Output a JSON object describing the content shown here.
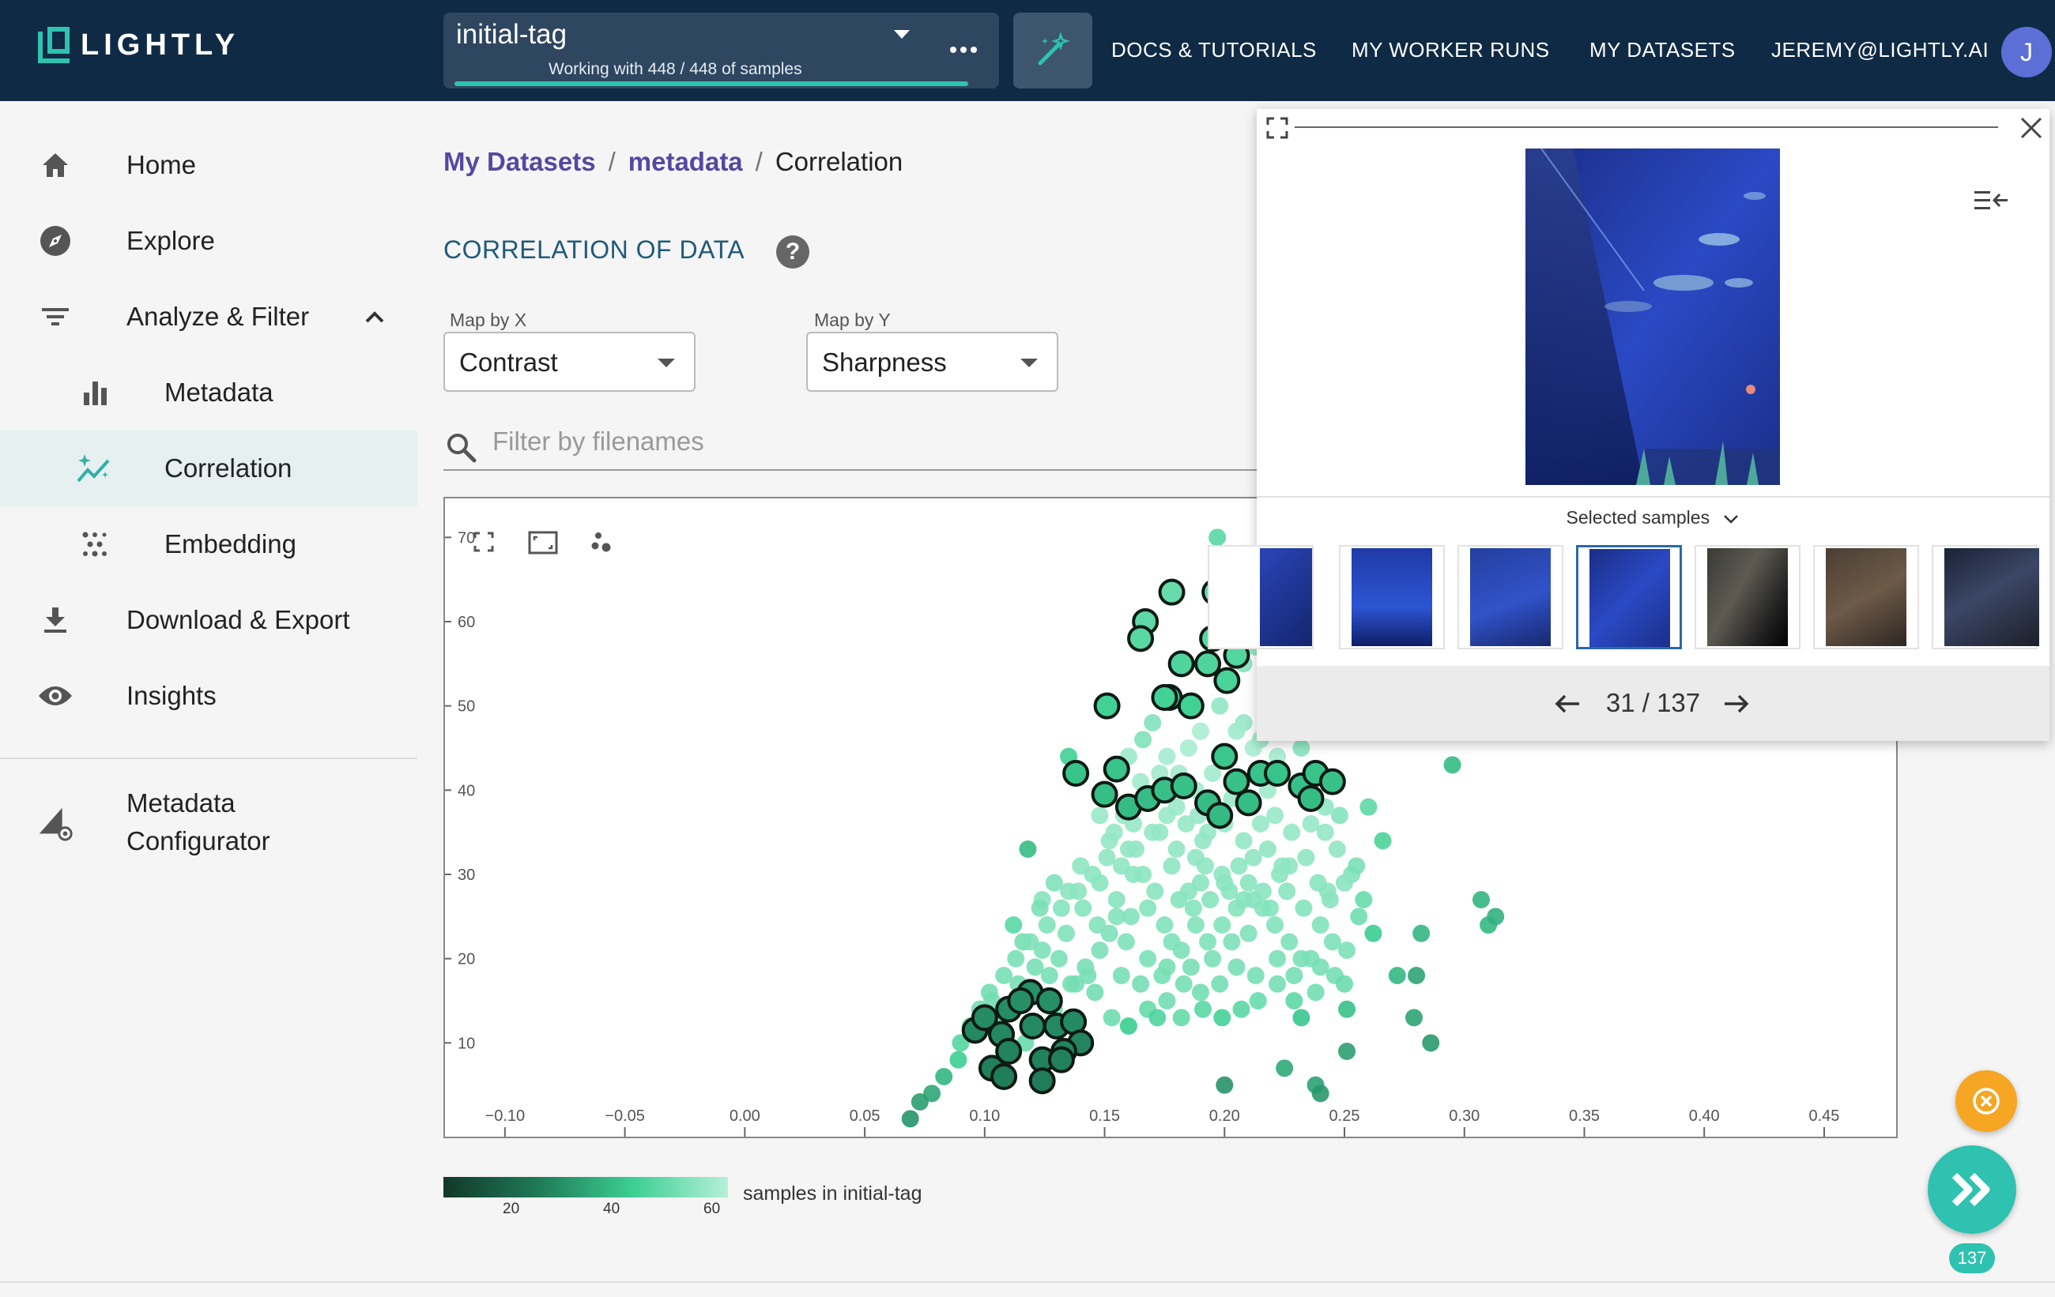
{
  "header": {
    "logo_text": "LIGHTLY",
    "tag": {
      "name": "initial-tag",
      "subtitle": "Working with 448 / 448 of samples",
      "progress": 1.0
    },
    "nav": [
      "DOCS & TUTORIALS",
      "MY WORKER RUNS",
      "MY DATASETS"
    ],
    "user_email": "JEREMY@LIGHTLY.AI",
    "avatar_initial": "J"
  },
  "sidebar": {
    "items": [
      {
        "label": "Home",
        "icon": "home-icon"
      },
      {
        "label": "Explore",
        "icon": "compass-icon"
      },
      {
        "label": "Analyze & Filter",
        "icon": "filter-icon"
      },
      {
        "label": "Metadata",
        "icon": "bar-chart-icon"
      },
      {
        "label": "Correlation",
        "icon": "sparkle-chart-icon"
      },
      {
        "label": "Embedding",
        "icon": "scatter-dots-icon"
      },
      {
        "label": "Download & Export",
        "icon": "download-icon"
      },
      {
        "label": "Insights",
        "icon": "eye-icon"
      }
    ],
    "configurator": {
      "line1": "Metadata",
      "line2": "Configurator",
      "icon": "configurator-icon"
    }
  },
  "breadcrumb": [
    "My Datasets",
    "metadata",
    "Correlation"
  ],
  "section_title": "CORRELATION OF DATA",
  "map_x": {
    "label": "Map by X",
    "value": "Contrast"
  },
  "map_y": {
    "label": "Map by Y",
    "value": "Sharpness"
  },
  "filter": {
    "placeholder": "Filter by filenames",
    "value": ""
  },
  "chart_data": {
    "type": "scatter",
    "xlabel": "",
    "ylabel": "",
    "xlim": [
      -0.125,
      0.48
    ],
    "ylim": [
      0,
      72
    ],
    "x_ticks": [
      "−0.10",
      "−0.05",
      "0.00",
      "0.05",
      "0.10",
      "0.15",
      "0.20",
      "0.25",
      "0.30",
      "0.35",
      "0.40",
      "0.45"
    ],
    "x_tick_values": [
      -0.1,
      -0.05,
      0.0,
      0.05,
      0.1,
      0.15,
      0.2,
      0.25,
      0.3,
      0.35,
      0.4,
      0.45
    ],
    "y_ticks": [
      "10",
      "20",
      "30",
      "40",
      "50",
      "60",
      "70"
    ],
    "y_tick_values": [
      10,
      20,
      30,
      40,
      50,
      60,
      70
    ],
    "color_scale": {
      "label": "samples in initial-tag",
      "ticks": [
        "20",
        "40",
        "60"
      ],
      "colors": [
        "#12382a",
        "#1f7a58",
        "#3ccf92",
        "#b6f0da"
      ]
    },
    "selected_points": [
      [
        0.21,
        67.5
      ],
      [
        0.212,
        64
      ],
      [
        0.207,
        63
      ],
      [
        0.196,
        63.5
      ],
      [
        0.178,
        63.5
      ],
      [
        0.203,
        61
      ],
      [
        0.22,
        62.5
      ],
      [
        0.167,
        60
      ],
      [
        0.165,
        58
      ],
      [
        0.195,
        58
      ],
      [
        0.205,
        56
      ],
      [
        0.193,
        55
      ],
      [
        0.201,
        53
      ],
      [
        0.182,
        55
      ],
      [
        0.177,
        51
      ],
      [
        0.186,
        50
      ],
      [
        0.175,
        51
      ],
      [
        0.151,
        50
      ],
      [
        0.138,
        42
      ],
      [
        0.155,
        42.5
      ],
      [
        0.15,
        39.5
      ],
      [
        0.16,
        38
      ],
      [
        0.168,
        39
      ],
      [
        0.175,
        40
      ],
      [
        0.183,
        40.5
      ],
      [
        0.193,
        38.5
      ],
      [
        0.205,
        41
      ],
      [
        0.21,
        38.5
      ],
      [
        0.215,
        42
      ],
      [
        0.222,
        42
      ],
      [
        0.232,
        40.5
      ],
      [
        0.238,
        42
      ],
      [
        0.245,
        41
      ],
      [
        0.236,
        39
      ],
      [
        0.198,
        37
      ],
      [
        0.2,
        44
      ],
      [
        0.096,
        11.5
      ],
      [
        0.1,
        13
      ],
      [
        0.107,
        11
      ],
      [
        0.11,
        14
      ],
      [
        0.119,
        16
      ],
      [
        0.127,
        15
      ],
      [
        0.13,
        12
      ],
      [
        0.137,
        12.5
      ],
      [
        0.14,
        10
      ],
      [
        0.133,
        9
      ],
      [
        0.124,
        8
      ],
      [
        0.11,
        9
      ],
      [
        0.103,
        7
      ],
      [
        0.108,
        6
      ],
      [
        0.124,
        5.5
      ],
      [
        0.132,
        8
      ],
      [
        0.115,
        15
      ],
      [
        0.12,
        12
      ]
    ],
    "points": [
      [
        0.197,
        70
      ],
      [
        0.198,
        59
      ],
      [
        0.213,
        57
      ],
      [
        0.208,
        48
      ],
      [
        0.19,
        47
      ],
      [
        0.205,
        47
      ],
      [
        0.215,
        46
      ],
      [
        0.222,
        44
      ],
      [
        0.212,
        45
      ],
      [
        0.185,
        45
      ],
      [
        0.176,
        44
      ],
      [
        0.165,
        41
      ],
      [
        0.18,
        38
      ],
      [
        0.173,
        35
      ],
      [
        0.191,
        34
      ],
      [
        0.188,
        32
      ],
      [
        0.16,
        33
      ],
      [
        0.162,
        30
      ],
      [
        0.178,
        31
      ],
      [
        0.185,
        28
      ],
      [
        0.19,
        29
      ],
      [
        0.199,
        30
      ],
      [
        0.206,
        31
      ],
      [
        0.212,
        32
      ],
      [
        0.218,
        33
      ],
      [
        0.223,
        30
      ],
      [
        0.227,
        31
      ],
      [
        0.234,
        32
      ],
      [
        0.239,
        29
      ],
      [
        0.244,
        27
      ],
      [
        0.212,
        27
      ],
      [
        0.205,
        26
      ],
      [
        0.199,
        24
      ],
      [
        0.193,
        22
      ],
      [
        0.188,
        24
      ],
      [
        0.182,
        21
      ],
      [
        0.176,
        19
      ],
      [
        0.168,
        20
      ],
      [
        0.159,
        22
      ],
      [
        0.152,
        23
      ],
      [
        0.148,
        21
      ],
      [
        0.143,
        18
      ],
      [
        0.136,
        17
      ],
      [
        0.127,
        18
      ],
      [
        0.121,
        19
      ],
      [
        0.116,
        22
      ],
      [
        0.112,
        24
      ],
      [
        0.124,
        27
      ],
      [
        0.129,
        29
      ],
      [
        0.135,
        28
      ],
      [
        0.141,
        26
      ],
      [
        0.148,
        29
      ],
      [
        0.155,
        27
      ],
      [
        0.161,
        25
      ],
      [
        0.168,
        26
      ],
      [
        0.175,
        24
      ],
      [
        0.181,
        27
      ],
      [
        0.187,
        26
      ],
      [
        0.194,
        27
      ],
      [
        0.202,
        28
      ],
      [
        0.21,
        29
      ],
      [
        0.216,
        26
      ],
      [
        0.221,
        24
      ],
      [
        0.227,
        22
      ],
      [
        0.232,
        20
      ],
      [
        0.24,
        19
      ],
      [
        0.246,
        18
      ],
      [
        0.251,
        21
      ],
      [
        0.258,
        27
      ],
      [
        0.253,
        30
      ],
      [
        0.247,
        33
      ],
      [
        0.242,
        35
      ],
      [
        0.236,
        36
      ],
      [
        0.228,
        35
      ],
      [
        0.221,
        37
      ],
      [
        0.215,
        36
      ],
      [
        0.208,
        34
      ],
      [
        0.2,
        36
      ],
      [
        0.193,
        35
      ],
      [
        0.184,
        36
      ],
      [
        0.176,
        37
      ],
      [
        0.17,
        35
      ],
      [
        0.163,
        33
      ],
      [
        0.157,
        31
      ],
      [
        0.151,
        32
      ],
      [
        0.145,
        30
      ],
      [
        0.139,
        28
      ],
      [
        0.132,
        26
      ],
      [
        0.126,
        24
      ],
      [
        0.119,
        22
      ],
      [
        0.113,
        20
      ],
      [
        0.108,
        18
      ],
      [
        0.102,
        16
      ],
      [
        0.098,
        14
      ],
      [
        0.094,
        12
      ],
      [
        0.089,
        8
      ],
      [
        0.083,
        6
      ],
      [
        0.078,
        4
      ],
      [
        0.073,
        3
      ],
      [
        0.069,
        1
      ],
      [
        0.09,
        10
      ],
      [
        0.103,
        15
      ],
      [
        0.114,
        17
      ],
      [
        0.131,
        20
      ],
      [
        0.146,
        16
      ],
      [
        0.153,
        13
      ],
      [
        0.16,
        12
      ],
      [
        0.168,
        14
      ],
      [
        0.176,
        15
      ],
      [
        0.182,
        13
      ],
      [
        0.19,
        16
      ],
      [
        0.198,
        17
      ],
      [
        0.205,
        19
      ],
      [
        0.213,
        18
      ],
      [
        0.222,
        20
      ],
      [
        0.229,
        18
      ],
      [
        0.238,
        16
      ],
      [
        0.245,
        22
      ],
      [
        0.256,
        25
      ],
      [
        0.262,
        23
      ],
      [
        0.272,
        18
      ],
      [
        0.279,
        13
      ],
      [
        0.286,
        10
      ],
      [
        0.251,
        9
      ],
      [
        0.238,
        5
      ],
      [
        0.24,
        4
      ],
      [
        0.2,
        5
      ],
      [
        0.225,
        7
      ],
      [
        0.232,
        13
      ],
      [
        0.251,
        14
      ],
      [
        0.25,
        17
      ],
      [
        0.28,
        18
      ],
      [
        0.282,
        23
      ],
      [
        0.31,
        24
      ],
      [
        0.307,
        27
      ],
      [
        0.313,
        25
      ],
      [
        0.295,
        43
      ],
      [
        0.172,
        13
      ],
      [
        0.138,
        17
      ],
      [
        0.134,
        23
      ],
      [
        0.14,
        31
      ],
      [
        0.152,
        34
      ],
      [
        0.158,
        37
      ],
      [
        0.166,
        30
      ],
      [
        0.171,
        28
      ],
      [
        0.178,
        22
      ],
      [
        0.186,
        19
      ],
      [
        0.195,
        20
      ],
      [
        0.203,
        22
      ],
      [
        0.21,
        23
      ],
      [
        0.219,
        26
      ],
      [
        0.226,
        28
      ],
      [
        0.233,
        26
      ],
      [
        0.24,
        24
      ],
      [
        0.195,
        42
      ],
      [
        0.188,
        40
      ],
      [
        0.181,
        42
      ],
      [
        0.16,
        44
      ],
      [
        0.166,
        46
      ],
      [
        0.17,
        48
      ],
      [
        0.198,
        50
      ],
      [
        0.202,
        53
      ],
      [
        0.208,
        55
      ],
      [
        0.22,
        50
      ],
      [
        0.226,
        47
      ],
      [
        0.232,
        45
      ],
      [
        0.218,
        40
      ],
      [
        0.203,
        39
      ],
      [
        0.189,
        37
      ],
      [
        0.173,
        42
      ],
      [
        0.155,
        25
      ],
      [
        0.147,
        24
      ],
      [
        0.129,
        14
      ],
      [
        0.117,
        10
      ],
      [
        0.106,
        13
      ],
      [
        0.124,
        21
      ],
      [
        0.142,
        19
      ],
      [
        0.157,
        18
      ],
      [
        0.165,
        17
      ],
      [
        0.174,
        18
      ],
      [
        0.183,
        17
      ],
      [
        0.191,
        14
      ],
      [
        0.199,
        13
      ],
      [
        0.207,
        14
      ],
      [
        0.214,
        15
      ],
      [
        0.222,
        17
      ],
      [
        0.229,
        15
      ],
      [
        0.236,
        20
      ],
      [
        0.243,
        28
      ],
      [
        0.25,
        29
      ],
      [
        0.255,
        31
      ],
      [
        0.248,
        37
      ],
      [
        0.242,
        38
      ],
      [
        0.26,
        38
      ],
      [
        0.266,
        34
      ],
      [
        0.123,
        26
      ],
      [
        0.118,
        33
      ],
      [
        0.135,
        44
      ],
      [
        0.148,
        37
      ],
      [
        0.154,
        35
      ],
      [
        0.162,
        36
      ],
      [
        0.18,
        33
      ],
      [
        0.192,
        31
      ],
      [
        0.2,
        29
      ],
      [
        0.208,
        27
      ],
      [
        0.216,
        28
      ],
      [
        0.224,
        31
      ]
    ]
  },
  "preview": {
    "selected_label": "Selected samples",
    "counter": "31 / 137",
    "thumb_count": 7,
    "active_thumb": 3
  },
  "fab": {
    "count": "137"
  }
}
